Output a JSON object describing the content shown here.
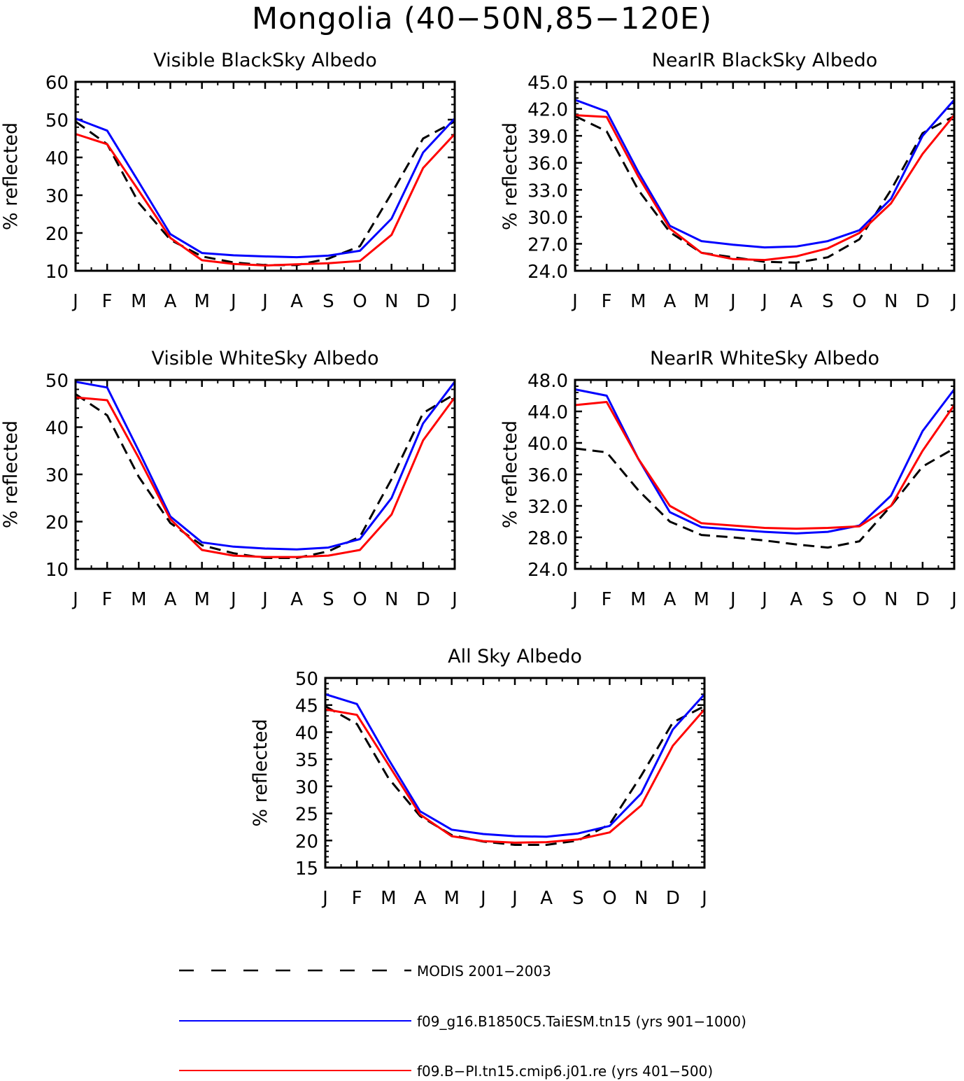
{
  "page": {
    "title": "Mongolia (40−50N,85−120E)"
  },
  "colors": {
    "modis": "#000000",
    "taiesm": "#0000ff",
    "cmip6": "#ff0000"
  },
  "legend": {
    "items": [
      {
        "key": "modis",
        "label": "MODIS 2001−2003",
        "style": "dashed"
      },
      {
        "key": "taiesm",
        "label": "f09_g16.B1850C5.TaiESM.tn15 (yrs 901−1000)",
        "style": "solid"
      },
      {
        "key": "cmip6",
        "label": "f09.B−PI.tn15.cmip6.j01.re (yrs 401−500)",
        "style": "solid"
      }
    ]
  },
  "chart_data": [
    {
      "type": "line",
      "title": "Visible BlackSky Albedo",
      "ylabel": "% reflected",
      "categories": [
        "J",
        "F",
        "M",
        "A",
        "M",
        "J",
        "J",
        "A",
        "S",
        "O",
        "N",
        "D",
        "J"
      ],
      "ylim": [
        10,
        60
      ],
      "yticks": [
        10,
        20,
        30,
        40,
        50,
        60
      ],
      "ytick_labels": [
        "10",
        "20",
        "30",
        "40",
        "50",
        "60"
      ],
      "series": [
        {
          "key": "modis",
          "values": [
            49.5,
            43.5,
            28.0,
            18.2,
            13.8,
            12.2,
            11.5,
            11.5,
            13.2,
            16.5,
            30.5,
            45.0,
            49.5
          ]
        },
        {
          "key": "taiesm",
          "values": [
            50.3,
            47.1,
            33.5,
            19.7,
            14.7,
            14.1,
            13.8,
            13.6,
            14.0,
            15.3,
            23.8,
            41.3,
            50.3
          ]
        },
        {
          "key": "cmip6",
          "values": [
            46.2,
            43.5,
            31.2,
            18.7,
            12.8,
            11.8,
            11.4,
            11.7,
            12.0,
            12.6,
            19.5,
            37.2,
            46.2
          ]
        }
      ]
    },
    {
      "type": "line",
      "title": "NearIR BlackSky Albedo",
      "ylabel": "% reflected",
      "categories": [
        "J",
        "F",
        "M",
        "A",
        "M",
        "J",
        "J",
        "A",
        "S",
        "O",
        "N",
        "D",
        "J"
      ],
      "ylim": [
        24,
        45
      ],
      "yticks": [
        24,
        27,
        30,
        33,
        36,
        39,
        42,
        45
      ],
      "ytick_labels": [
        "24.0",
        "27.0",
        "30.0",
        "33.0",
        "36.0",
        "39.0",
        "42.0",
        "45.0"
      ],
      "series": [
        {
          "key": "modis",
          "values": [
            41.2,
            39.5,
            33.0,
            28.3,
            26.0,
            25.5,
            25.0,
            24.9,
            25.5,
            27.5,
            33.0,
            39.3,
            41.2
          ]
        },
        {
          "key": "taiesm",
          "values": [
            43.0,
            41.7,
            35.0,
            29.0,
            27.3,
            26.9,
            26.6,
            26.7,
            27.3,
            28.5,
            32.0,
            39.0,
            43.0
          ]
        },
        {
          "key": "cmip6",
          "values": [
            41.3,
            41.1,
            34.5,
            28.7,
            26.0,
            25.3,
            25.2,
            25.6,
            26.5,
            28.2,
            31.5,
            37.0,
            41.3
          ]
        }
      ]
    },
    {
      "type": "line",
      "title": "Visible WhiteSky Albedo",
      "ylabel": "% reflected",
      "categories": [
        "J",
        "F",
        "M",
        "A",
        "M",
        "J",
        "J",
        "A",
        "S",
        "O",
        "N",
        "D",
        "J"
      ],
      "ylim": [
        10,
        50
      ],
      "yticks": [
        10,
        20,
        30,
        40,
        50
      ],
      "ytick_labels": [
        "10",
        "20",
        "30",
        "40",
        "50"
      ],
      "series": [
        {
          "key": "modis",
          "values": [
            47.0,
            42.5,
            29.5,
            19.7,
            15.0,
            13.3,
            12.3,
            12.3,
            13.7,
            16.8,
            29.0,
            43.0,
            47.0
          ]
        },
        {
          "key": "taiesm",
          "values": [
            49.6,
            48.4,
            35.0,
            21.1,
            15.6,
            14.7,
            14.3,
            14.1,
            14.5,
            16.3,
            25.0,
            40.8,
            49.6
          ]
        },
        {
          "key": "cmip6",
          "values": [
            46.3,
            45.7,
            33.5,
            20.5,
            14.0,
            12.8,
            12.5,
            12.5,
            12.8,
            14.0,
            21.5,
            37.2,
            46.3
          ]
        }
      ]
    },
    {
      "type": "line",
      "title": "NearIR WhiteSky Albedo",
      "ylabel": "% reflected",
      "categories": [
        "J",
        "F",
        "M",
        "A",
        "M",
        "J",
        "J",
        "A",
        "S",
        "O",
        "N",
        "D",
        "J"
      ],
      "ylim": [
        24,
        48
      ],
      "yticks": [
        24,
        28,
        32,
        36,
        40,
        44,
        48
      ],
      "ytick_labels": [
        "24.0",
        "28.0",
        "32.0",
        "36.0",
        "40.0",
        "44.0",
        "48.0"
      ],
      "series": [
        {
          "key": "modis",
          "values": [
            39.3,
            38.8,
            34.0,
            30.0,
            28.3,
            28.0,
            27.6,
            27.1,
            26.7,
            27.5,
            32.0,
            37.0,
            39.3
          ]
        },
        {
          "key": "taiesm",
          "values": [
            46.8,
            46.0,
            38.0,
            31.2,
            29.3,
            29.0,
            28.7,
            28.5,
            28.7,
            29.5,
            33.3,
            41.5,
            46.8
          ]
        },
        {
          "key": "cmip6",
          "values": [
            44.8,
            45.2,
            38.0,
            32.0,
            29.8,
            29.5,
            29.2,
            29.1,
            29.2,
            29.4,
            32.0,
            39.0,
            44.8
          ]
        }
      ]
    },
    {
      "type": "line",
      "title": "All Sky Albedo",
      "ylabel": "% reflected",
      "categories": [
        "J",
        "F",
        "M",
        "A",
        "M",
        "J",
        "J",
        "A",
        "S",
        "O",
        "N",
        "D",
        "J"
      ],
      "ylim": [
        15,
        50
      ],
      "yticks": [
        15,
        20,
        25,
        30,
        35,
        40,
        45,
        50
      ],
      "ytick_labels": [
        "15",
        "20",
        "25",
        "30",
        "35",
        "40",
        "45",
        "50"
      ],
      "series": [
        {
          "key": "modis",
          "values": [
            44.8,
            41.5,
            31.5,
            24.5,
            21.0,
            19.8,
            19.2,
            19.2,
            20.0,
            23.0,
            32.0,
            41.8,
            44.8
          ]
        },
        {
          "key": "taiesm",
          "values": [
            47.0,
            45.2,
            35.0,
            25.4,
            22.0,
            21.2,
            20.8,
            20.7,
            21.3,
            22.7,
            28.7,
            40.5,
            47.0
          ]
        },
        {
          "key": "cmip6",
          "values": [
            44.2,
            43.2,
            34.0,
            24.8,
            20.8,
            19.9,
            19.6,
            19.7,
            20.2,
            21.5,
            26.5,
            37.5,
            44.2
          ]
        }
      ]
    }
  ]
}
